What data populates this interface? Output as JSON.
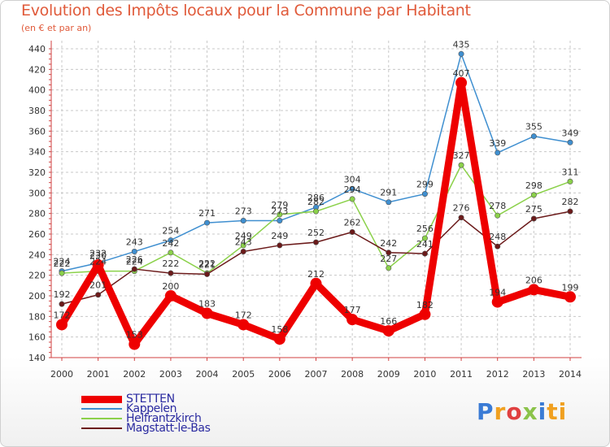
{
  "header": {
    "title": "Evolution des Impôts locaux pour la Commune par Habitant",
    "subtitle": "(en € et par an)"
  },
  "logo": {
    "letters": [
      "P",
      "r",
      "o",
      "x",
      "i",
      "ti"
    ]
  },
  "chart_data": {
    "type": "line",
    "categories": [
      "2000",
      "2001",
      "2002",
      "2003",
      "2004",
      "2005",
      "2006",
      "2007",
      "2008",
      "2009",
      "2010",
      "2011",
      "2012",
      "2013",
      "2014"
    ],
    "ylim": [
      140,
      440
    ],
    "yticks": [
      140,
      160,
      180,
      200,
      220,
      240,
      260,
      280,
      300,
      320,
      340,
      360,
      380,
      400,
      420,
      440
    ],
    "grid": true,
    "legend_position": "bottom-left",
    "series": [
      {
        "name": "STETTEN",
        "color": "#ee0000",
        "emphasis": true,
        "values": [
          172,
          230,
          153,
          200,
          183,
          172,
          158,
          212,
          177,
          166,
          182,
          407,
          194,
          206,
          199
        ],
        "labels": [
          "172",
          "230",
          "153",
          "200",
          "183",
          "172",
          "158",
          "212",
          "177",
          "166",
          "182",
          "407",
          "194",
          "206",
          "199"
        ]
      },
      {
        "name": "Kappelen",
        "color": "#3f8fd0",
        "values": [
          224,
          232,
          243,
          254,
          271,
          273,
          273,
          286,
          304,
          291,
          299,
          435,
          339,
          355,
          349
        ],
        "labels": [
          "224",
          "232",
          "243",
          "254",
          "271",
          "273",
          "273",
          "286",
          "304",
          "291",
          "299",
          "435",
          "339",
          "355",
          "349"
        ]
      },
      {
        "name": "Helfrantzkirch",
        "color": "#8bd14a",
        "values": [
          222,
          224,
          224,
          242,
          222,
          249,
          279,
          282,
          294,
          227,
          256,
          327,
          278,
          298,
          311
        ],
        "labels": [
          "222",
          "224",
          "224",
          "242",
          "222",
          "249",
          "279",
          "282",
          "294",
          "227",
          "256",
          "327",
          "278",
          "298",
          "311"
        ]
      },
      {
        "name": "Magstatt-le-Bas",
        "color": "#6b1a1a",
        "values": [
          192,
          201,
          226,
          222,
          221,
          243,
          249,
          252,
          262,
          242,
          241,
          276,
          248,
          275,
          282
        ],
        "labels": [
          "192",
          "201",
          "226",
          "222",
          "221",
          "243",
          "249",
          "252",
          "262",
          "242",
          "241",
          "276",
          "248",
          "275",
          "282"
        ]
      }
    ]
  }
}
